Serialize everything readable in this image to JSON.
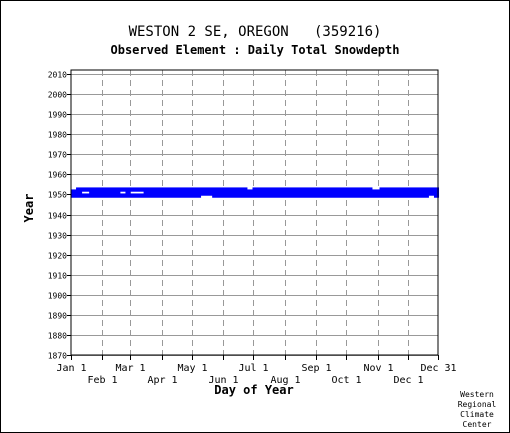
{
  "chart_data": {
    "type": "scatter",
    "title": "WESTON 2 SE, OREGON   (359216)",
    "subtitle": "Observed Element : Daily Total Snowdepth",
    "xlabel": "Day of Year",
    "ylabel": "Year",
    "ylim": [
      1870,
      2012
    ],
    "yticks": [
      2010,
      2000,
      1990,
      1980,
      1970,
      1960,
      1950,
      1940,
      1930,
      1920,
      1910,
      1900,
      1890,
      1880,
      1870
    ],
    "xlim": [
      1,
      365
    ],
    "xticks_top": [
      {
        "label": "Jan 1",
        "day": 1
      },
      {
        "label": "Mar 1",
        "day": 60
      },
      {
        "label": "May 1",
        "day": 121
      },
      {
        "label": "Jul 1",
        "day": 182
      },
      {
        "label": "Sep 1",
        "day": 244
      },
      {
        "label": "Nov 1",
        "day": 305
      },
      {
        "label": "Dec 31",
        "day": 365
      }
    ],
    "xticks_bottom": [
      {
        "label": "Feb 1",
        "day": 32
      },
      {
        "label": "Apr 1",
        "day": 91
      },
      {
        "label": "Jun 1",
        "day": 152
      },
      {
        "label": "Aug 1",
        "day": 213
      },
      {
        "label": "Oct 1",
        "day": 274
      },
      {
        "label": "Dec 1",
        "day": 335
      }
    ],
    "grid": true,
    "marker_color": "#0000ff",
    "years_with_data": [
      1949,
      1950,
      1951,
      1952,
      1953
    ],
    "data_day_range": [
      1,
      365
    ],
    "gaps": [
      {
        "year": 1953,
        "days": [
          1,
          5
        ]
      },
      {
        "year": 1951,
        "days": [
          12,
          18
        ]
      },
      {
        "year": 1951,
        "days": [
          50,
          54
        ]
      },
      {
        "year": 1951,
        "days": [
          60,
          72
        ]
      },
      {
        "year": 1949,
        "days": [
          130,
          140
        ]
      },
      {
        "year": 1953,
        "days": [
          176,
          180
        ]
      },
      {
        "year": 1953,
        "days": [
          300,
          306
        ]
      },
      {
        "year": 1949,
        "days": [
          356,
          360
        ]
      }
    ]
  },
  "credit": [
    "Western",
    "Regional",
    "Climate",
    "Center"
  ]
}
